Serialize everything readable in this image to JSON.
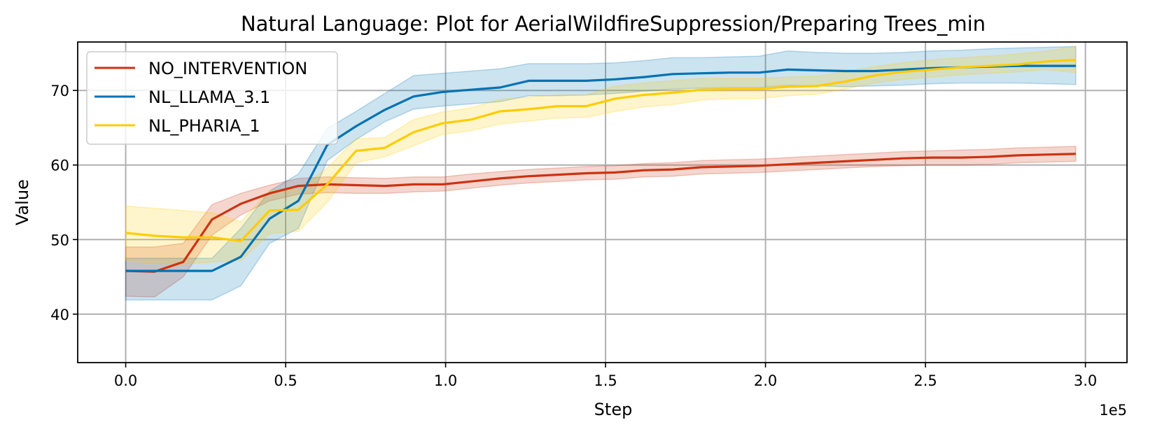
{
  "chart_data": {
    "type": "line",
    "title": "Natural Language: Plot for AerialWildfireSuppression/Preparing Trees_min",
    "xlabel": "Step",
    "ylabel": "Value",
    "x_offset_text": "1e5",
    "xlim": [
      -0.15,
      3.13
    ],
    "ylim": [
      33.5,
      76.5
    ],
    "xticks": [
      0.0,
      0.5,
      1.0,
      1.5,
      2.0,
      2.5,
      3.0
    ],
    "xtick_labels": [
      "0.0",
      "0.5",
      "1.0",
      "1.5",
      "2.0",
      "2.5",
      "3.0"
    ],
    "yticks": [
      40,
      50,
      60,
      70
    ],
    "ytick_labels": [
      "40",
      "50",
      "60",
      "70"
    ],
    "grid": true,
    "legend_position": "upper left",
    "x": [
      0.0,
      0.09,
      0.18,
      0.27,
      0.36,
      0.45,
      0.54,
      0.63,
      0.72,
      0.81,
      0.9,
      0.99,
      1.08,
      1.17,
      1.26,
      1.35,
      1.44,
      1.53,
      1.62,
      1.71,
      1.8,
      1.89,
      1.98,
      2.07,
      2.16,
      2.25,
      2.34,
      2.43,
      2.52,
      2.61,
      2.7,
      2.79,
      2.88,
      2.97
    ],
    "series": [
      {
        "name": "NO_INTERVENTION",
        "color": "#cc3311",
        "values": [
          45.8,
          45.7,
          47.0,
          52.7,
          54.8,
          56.2,
          57.2,
          57.4,
          57.3,
          57.2,
          57.4,
          57.4,
          57.8,
          58.2,
          58.5,
          58.7,
          58.9,
          59.0,
          59.3,
          59.4,
          59.7,
          59.8,
          59.9,
          60.1,
          60.3,
          60.5,
          60.7,
          60.9,
          61.0,
          61.0,
          61.1,
          61.3,
          61.4,
          61.5
        ],
        "lower": [
          42.4,
          42.3,
          45.0,
          50.6,
          53.3,
          55.2,
          56.1,
          56.3,
          56.2,
          56.2,
          56.4,
          56.5,
          56.9,
          57.3,
          57.6,
          57.8,
          58.0,
          58.1,
          58.4,
          58.5,
          58.8,
          58.9,
          59.0,
          59.2,
          59.4,
          59.6,
          59.8,
          59.9,
          60.0,
          60.0,
          60.1,
          60.3,
          60.4,
          60.5
        ],
        "upper": [
          49.0,
          49.0,
          49.5,
          54.7,
          56.2,
          57.3,
          58.2,
          58.4,
          58.3,
          58.2,
          58.4,
          58.4,
          58.8,
          59.1,
          59.4,
          59.6,
          59.8,
          59.9,
          60.2,
          60.3,
          60.6,
          60.7,
          60.8,
          61.0,
          61.2,
          61.4,
          61.6,
          61.8,
          61.9,
          62.0,
          62.1,
          62.3,
          62.4,
          62.5
        ]
      },
      {
        "name": "NL_LLAMA_3.1",
        "color": "#0072b2",
        "values": [
          45.8,
          45.8,
          45.8,
          45.8,
          47.7,
          52.8,
          55.2,
          62.7,
          65.2,
          67.4,
          69.2,
          69.8,
          70.1,
          70.4,
          71.3,
          71.3,
          71.3,
          71.5,
          71.8,
          72.2,
          72.3,
          72.4,
          72.4,
          72.8,
          72.7,
          72.6,
          72.6,
          72.8,
          73.0,
          73.1,
          73.2,
          73.3,
          73.3,
          73.3
        ],
        "lower": [
          41.9,
          41.9,
          41.9,
          41.9,
          43.8,
          49.5,
          51.5,
          60.6,
          63.4,
          65.8,
          67.5,
          67.9,
          68.2,
          68.5,
          69.3,
          69.3,
          69.4,
          69.6,
          69.9,
          70.2,
          70.3,
          70.4,
          70.4,
          70.7,
          70.6,
          70.5,
          70.6,
          70.7,
          70.9,
          71.0,
          71.0,
          71.0,
          70.9,
          70.8
        ],
        "upper": [
          47.5,
          47.5,
          47.5,
          47.5,
          51.5,
          56.5,
          58.8,
          64.9,
          67.2,
          69.6,
          72.0,
          72.3,
          72.6,
          72.9,
          73.6,
          73.6,
          73.6,
          73.7,
          74.0,
          74.4,
          74.4,
          74.5,
          74.6,
          75.3,
          75.1,
          75.0,
          75.0,
          75.1,
          75.3,
          75.4,
          75.6,
          75.7,
          75.8,
          75.9
        ]
      },
      {
        "name": "NL_PHARIA_1",
        "color": "#ffcc00",
        "values": [
          50.9,
          50.5,
          50.3,
          50.3,
          49.8,
          53.9,
          54.0,
          57.4,
          61.9,
          62.3,
          64.4,
          65.6,
          66.1,
          67.2,
          67.5,
          67.9,
          67.9,
          68.9,
          69.4,
          69.7,
          70.1,
          70.2,
          70.2,
          70.5,
          70.6,
          71.2,
          72.0,
          72.5,
          72.8,
          73.1,
          73.3,
          73.5,
          73.9,
          74.1
        ],
        "lower": [
          47.2,
          46.8,
          46.7,
          47.0,
          47.2,
          50.8,
          51.1,
          55.0,
          60.3,
          61.1,
          62.6,
          64.1,
          64.6,
          65.5,
          65.9,
          66.3,
          66.4,
          67.2,
          67.8,
          68.1,
          68.7,
          68.9,
          68.9,
          69.3,
          69.5,
          70.2,
          71.0,
          71.5,
          71.8,
          72.1,
          72.3,
          72.5,
          72.8,
          72.4
        ],
        "upper": [
          54.5,
          54.2,
          53.9,
          53.6,
          52.4,
          56.6,
          56.7,
          59.6,
          63.5,
          63.7,
          66.1,
          67.1,
          67.7,
          68.8,
          69.1,
          69.4,
          69.4,
          70.6,
          71.0,
          71.3,
          71.6,
          71.6,
          71.6,
          71.8,
          71.9,
          72.5,
          73.2,
          73.7,
          74.1,
          74.4,
          74.6,
          74.9,
          75.3,
          75.9
        ]
      }
    ]
  }
}
